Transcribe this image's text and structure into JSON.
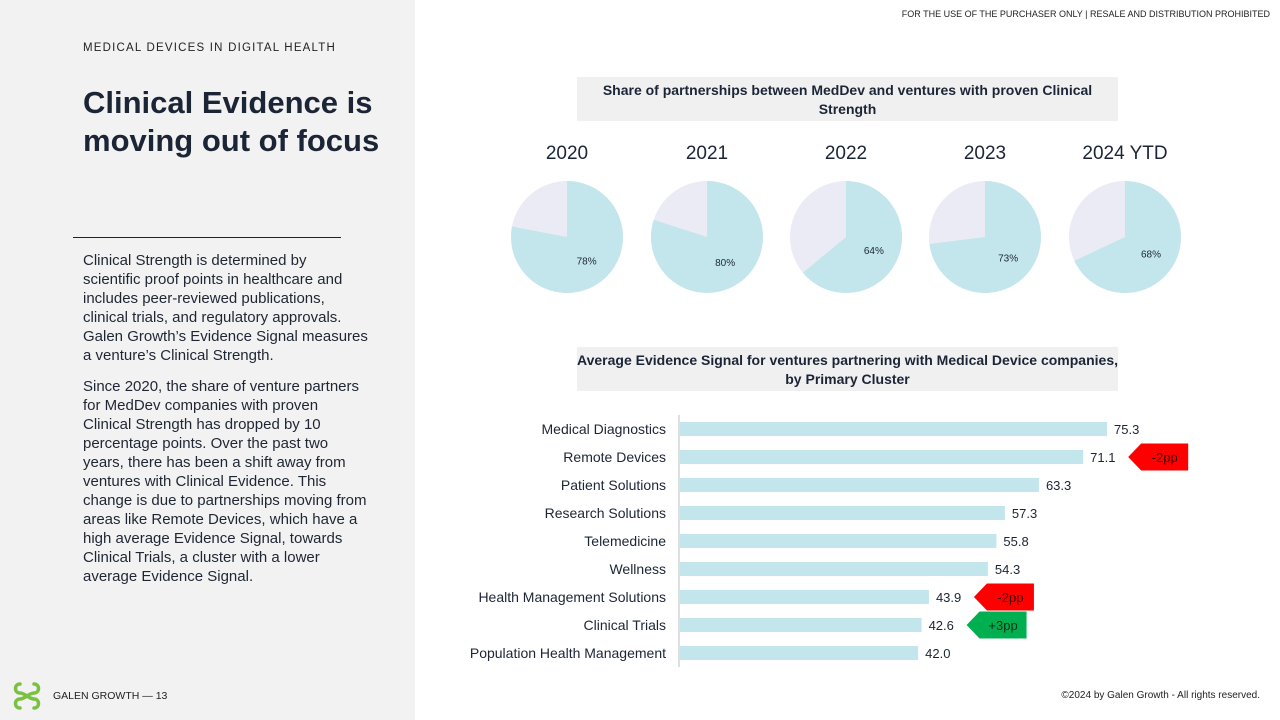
{
  "top_notice": "FOR THE USE OF THE PURCHASER ONLY | RESALE AND DISTRIBUTION PROHIBITED",
  "left": {
    "eyebrow": "MEDICAL DEVICES IN DIGITAL HEALTH",
    "title": "Clinical Evidence is moving out of focus",
    "paragraph1": "Clinical Strength is determined by scientific proof points in healthcare and includes peer-reviewed publications, clinical trials, and regulatory approvals. Galen Growth’s Evidence Signal measures a venture’s Clinical Strength.",
    "paragraph2": "Since 2020, the share of venture partners for MedDev companies with proven Clinical Strength has dropped by 10 percentage points. Over the past two years, there has been a shift away from ventures with Clinical Evidence. This change is due to partnerships moving from areas like Remote Devices, which have a high average Evidence Signal, towards Clinical Trials, a cluster with a lower average Evidence Signal."
  },
  "footer": {
    "brand": "GALEN GROWTH",
    "separator": "—",
    "page_number": "13",
    "copyright": "©2024 by Galen Growth  - All rights reserved."
  },
  "colors": {
    "pie_primary": "#c3e6ec",
    "pie_remainder": "#ebebf5",
    "bar": "#c3e6ec",
    "negative_tag": "#ff0000",
    "positive_tag": "#00b050",
    "title_box": "#f0f0f0",
    "logo_green": "#7ac143"
  },
  "chart_data": [
    {
      "type": "pie",
      "title": "Share of partnerships between MedDev and ventures with proven Clinical Strength",
      "pies": [
        {
          "label": "2020",
          "value": 78,
          "value_label": "78%"
        },
        {
          "label": "2021",
          "value": 80,
          "value_label": "80%"
        },
        {
          "label": "2022",
          "value": 64,
          "value_label": "64%"
        },
        {
          "label": "2023",
          "value": 73,
          "value_label": "73%"
        },
        {
          "label": "2024 YTD",
          "value": 68,
          "value_label": "68%"
        }
      ]
    },
    {
      "type": "bar",
      "orientation": "horizontal",
      "title": "Average Evidence Signal for ventures partnering with Medical Device companies, by Primary Cluster",
      "categories": [
        "Medical Diagnostics",
        "Remote Devices",
        "Patient Solutions",
        "Research Solutions",
        "Telemedicine",
        "Wellness",
        "Health Management Solutions",
        "Clinical Trials",
        "Population Health Management"
      ],
      "values": [
        75.3,
        71.1,
        63.3,
        57.3,
        55.8,
        54.3,
        43.9,
        42.6,
        42.0
      ],
      "value_labels": [
        "75.3",
        "71.1",
        "63.3",
        "57.3",
        "55.8",
        "54.3",
        "43.9",
        "42.6",
        "42.0"
      ],
      "xlim": [
        0,
        75.3
      ],
      "annotations": [
        {
          "category": "Remote Devices",
          "text": "-2pp",
          "sign": "negative"
        },
        {
          "category": "Health Management Solutions",
          "text": "-2pp",
          "sign": "negative"
        },
        {
          "category": "Clinical Trials",
          "text": "+3pp",
          "sign": "positive"
        }
      ]
    }
  ]
}
